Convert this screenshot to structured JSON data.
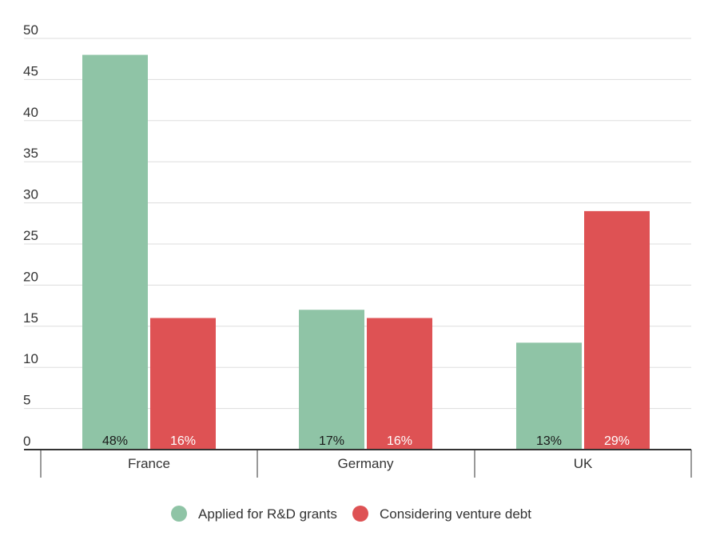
{
  "chart_data": {
    "type": "bar",
    "categories": [
      "France",
      "Germany",
      "UK"
    ],
    "series": [
      {
        "name": "Applied for R&D grants",
        "values": [
          48,
          17,
          13
        ],
        "labels": [
          "48%",
          "17%",
          "13%"
        ],
        "color": "#8fc4a6",
        "label_color": "#1a1a1a"
      },
      {
        "name": "Considering venture debt",
        "values": [
          16,
          16,
          29
        ],
        "labels": [
          "16%",
          "16%",
          "29%"
        ],
        "color": "#de5254",
        "label_color": "#ffffff"
      }
    ],
    "yticks": [
      "0",
      "5",
      "10",
      "15",
      "20",
      "25",
      "30",
      "35",
      "40",
      "45",
      "50"
    ],
    "ylim": [
      0,
      50
    ],
    "grid": true,
    "legend": "bottom-center",
    "grid_color": "#dddddd",
    "axis_color": "#333333"
  }
}
